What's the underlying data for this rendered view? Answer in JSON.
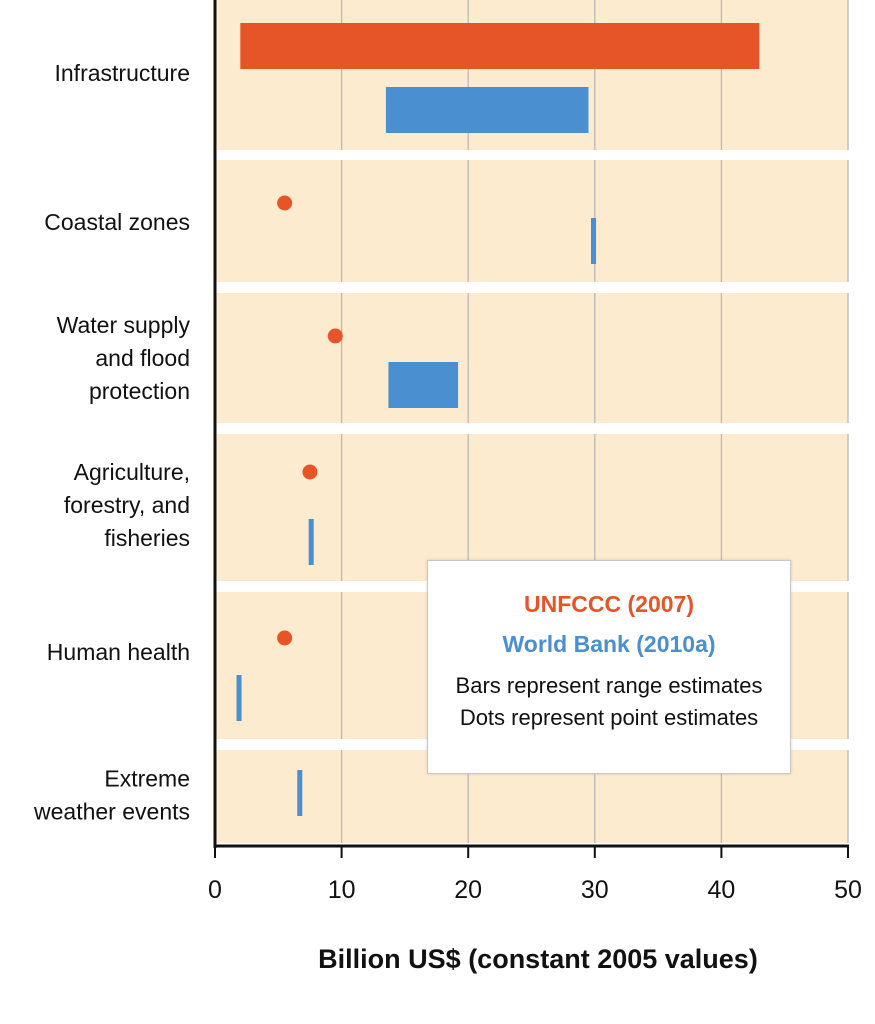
{
  "colors": {
    "unfccc": "#e55527",
    "world_bank": "#4a8fcf",
    "panel": "#fdebcf",
    "grid": "#b9b9b9"
  },
  "legend": {
    "series_1": "UNFCCC (2007)",
    "series_2": "World Bank (2010a)",
    "note_1": "Bars represent range estimates",
    "note_2": "Dots represent point estimates"
  },
  "chart_data": {
    "type": "bar",
    "orientation": "horizontal",
    "xlabel": "Billion US$ (constant 2005 values)",
    "xlim": [
      0,
      50
    ],
    "xticks": [
      0,
      10,
      20,
      30,
      40,
      50
    ],
    "grid": true,
    "legend_position": "center-right",
    "categories": [
      "Infrastructure",
      "Coastal zones",
      "Water supply and flood protection",
      "Agriculture, forestry, and fisheries",
      "Human health",
      "Extreme weather events"
    ],
    "category_label_lines": [
      [
        "Infrastructure"
      ],
      [
        "Coastal zones"
      ],
      [
        "Water supply",
        "and flood",
        "protection"
      ],
      [
        "Agriculture,",
        "forestry, and",
        "fisheries"
      ],
      [
        "Human health"
      ],
      [
        "Extreme",
        "weather events"
      ]
    ],
    "series": [
      {
        "name": "UNFCCC (2007)",
        "color": "#e55527",
        "values": [
          {
            "category": "Infrastructure",
            "kind": "range",
            "low": 2,
            "high": 43
          },
          {
            "category": "Coastal zones",
            "kind": "point",
            "value": 5.5
          },
          {
            "category": "Water supply and flood protection",
            "kind": "point",
            "value": 9.5
          },
          {
            "category": "Agriculture, forestry, and fisheries",
            "kind": "point",
            "value": 7.5
          },
          {
            "category": "Human health",
            "kind": "point",
            "value": 5.5
          },
          {
            "category": "Extreme weather events",
            "kind": "none"
          }
        ]
      },
      {
        "name": "World Bank (2010a)",
        "color": "#4a8fcf",
        "values": [
          {
            "category": "Infrastructure",
            "kind": "range",
            "low": 13.5,
            "high": 29.5
          },
          {
            "category": "Coastal zones",
            "kind": "range",
            "low": 29.7,
            "high": 30.1
          },
          {
            "category": "Water supply and flood protection",
            "kind": "range",
            "low": 13.7,
            "high": 19.2
          },
          {
            "category": "Agriculture, forestry, and fisheries",
            "kind": "range",
            "low": 7.4,
            "high": 7.7
          },
          {
            "category": "Human health",
            "kind": "range",
            "low": 1.7,
            "high": 2.0
          },
          {
            "category": "Extreme weather events",
            "kind": "range",
            "low": 6.5,
            "high": 6.7
          }
        ]
      }
    ]
  }
}
